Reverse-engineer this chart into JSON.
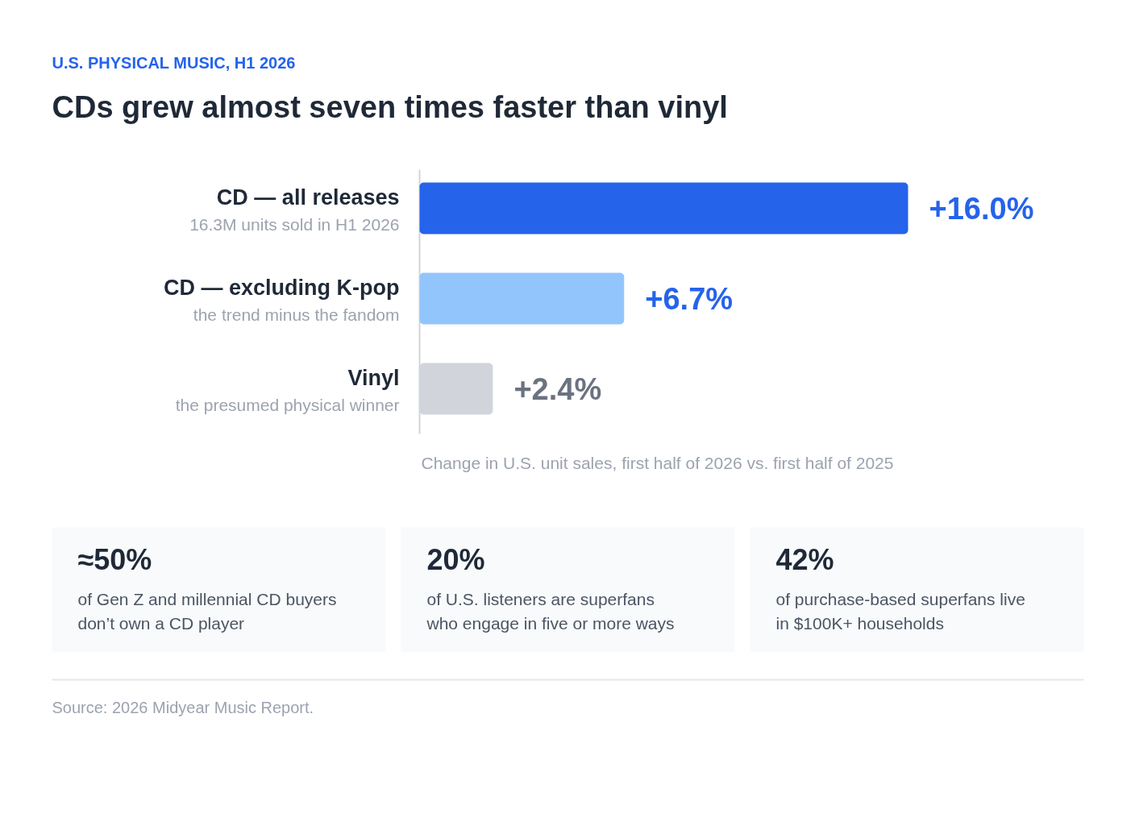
{
  "chart_data": {
    "type": "bar",
    "orientation": "horizontal",
    "subtitle": "U.S. PHYSICAL MUSIC, H1 2026",
    "title": "CDs grew almost seven times faster than vinyl",
    "xlabel": "Change in U.S. unit sales, first half of 2026 vs. first half of 2025",
    "categories": [
      "CD — all releases\n16.3M units sold in H1 2026",
      "CD — excluding K-pop\nthe trend minus the fandom",
      "Vinyl\nthe presumed physical winner"
    ],
    "values": [
      16.0,
      6.7,
      2.4
    ],
    "colors": [
      "#2563eb",
      "#93c5fd",
      "#d1d5db"
    ],
    "value_labels": [
      "+16.0%",
      "+6.7%",
      "+2.4%"
    ],
    "annotations": [
      "≈50%\nof Gen Z and millennial CD buyers\ndon’t own a CD player",
      "20%\nof U.S. listeners are superfans\nwho engage in five or more ways",
      "42%\nof purchase-based superfans live\nin $100K+ households",
      "Source: 2026 Midyear Music Report."
    ]
  }
}
